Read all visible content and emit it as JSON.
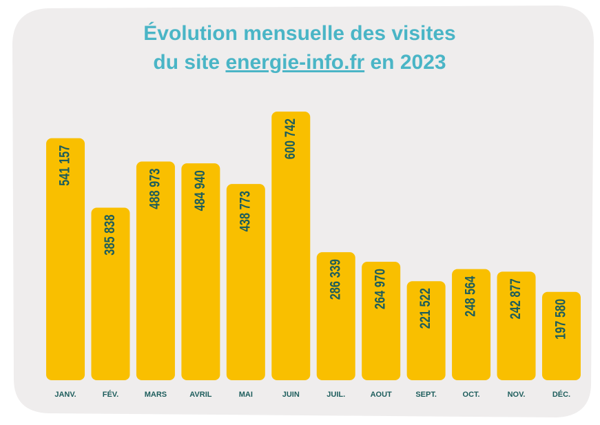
{
  "chart_data": {
    "type": "bar",
    "title": [
      "Évolution mensuelle des visites",
      "du site",
      "energie-info.fr",
      "en 2023"
    ],
    "categories": [
      "JANV.",
      "FÉV.",
      "MARS",
      "AVRIL",
      "MAI",
      "JUIN",
      "JUIL.",
      "AOUT",
      "SEPT.",
      "OCT.",
      "NOV.",
      "DÉC."
    ],
    "values": [
      541157,
      385838,
      488973,
      484940,
      438773,
      600742,
      286339,
      264970,
      221522,
      248564,
      242877,
      197580
    ],
    "value_labels": [
      "541 157",
      "385 838",
      "488 973",
      "484 940",
      "438 773",
      "600 742",
      "286 339",
      "264 970",
      "221 522",
      "248 564",
      "242 877",
      "197 580"
    ],
    "color": "#f9bf00",
    "ylim": [
      0,
      620000
    ]
  }
}
